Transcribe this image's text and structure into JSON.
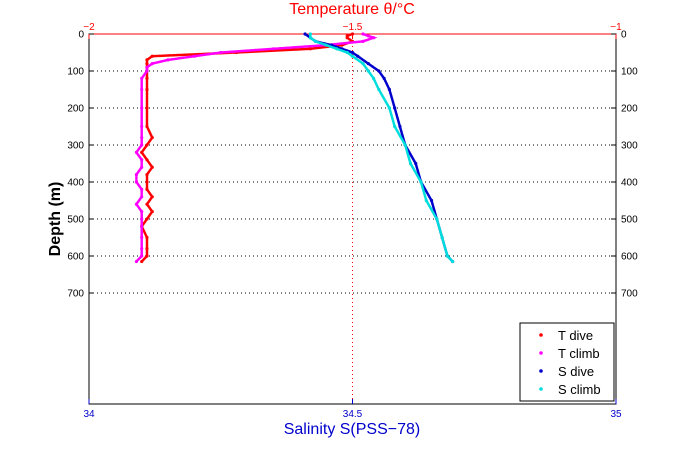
{
  "chart_data": {
    "type": "scatter",
    "title": "",
    "top_axis": {
      "label": "Temperature θ/°C",
      "ticks": [
        "−2",
        "−1.5",
        "−1"
      ],
      "tick_values": [
        -2,
        -1.5,
        -1
      ],
      "range": [
        -2,
        -1
      ],
      "color": "#ff0000"
    },
    "bottom_axis": {
      "label": "Salinity S(PSS−78)",
      "ticks": [
        "34",
        "34.5",
        "35"
      ],
      "tick_values": [
        34,
        34.5,
        35
      ],
      "range": [
        34,
        35
      ],
      "color": "#0000cc"
    },
    "y_axis": {
      "label": "Depth (m)",
      "ticks": [
        "0",
        "100",
        "200",
        "300",
        "400",
        "500",
        "600",
        "700"
      ],
      "tick_values": [
        0,
        100,
        200,
        300,
        400,
        500,
        600,
        700
      ],
      "range": [
        0,
        1000
      ],
      "inverted": true
    },
    "gridlines": {
      "depth": [
        100,
        200,
        300,
        400,
        500,
        600,
        700
      ],
      "salinity": [
        34.5
      ]
    },
    "legend_position": "bottom-right",
    "series": [
      {
        "name": "T dive",
        "axis": "temperature",
        "color": "#ff0000",
        "depth": [
          0,
          5,
          10,
          20,
          30,
          40,
          50,
          60,
          70,
          80,
          90,
          100,
          120,
          150,
          200,
          250,
          280,
          300,
          320,
          340,
          360,
          380,
          400,
          420,
          440,
          460,
          480,
          500,
          520,
          550,
          580,
          600,
          615
        ],
        "temp": [
          -1.5,
          -1.51,
          -1.51,
          -1.5,
          -1.52,
          -1.58,
          -1.72,
          -1.88,
          -1.89,
          -1.89,
          -1.89,
          -1.89,
          -1.89,
          -1.89,
          -1.89,
          -1.89,
          -1.88,
          -1.89,
          -1.9,
          -1.89,
          -1.88,
          -1.89,
          -1.89,
          -1.89,
          -1.88,
          -1.89,
          -1.88,
          -1.89,
          -1.9,
          -1.89,
          -1.89,
          -1.89,
          -1.9
        ]
      },
      {
        "name": "T climb",
        "axis": "temperature",
        "color": "#ff00ff",
        "depth": [
          0,
          5,
          10,
          20,
          30,
          40,
          50,
          60,
          70,
          80,
          90,
          100,
          120,
          150,
          200,
          250,
          280,
          300,
          320,
          340,
          360,
          380,
          400,
          420,
          440,
          460,
          480,
          500,
          520,
          550,
          580,
          600,
          615
        ],
        "temp": [
          -1.48,
          -1.47,
          -1.46,
          -1.48,
          -1.55,
          -1.65,
          -1.75,
          -1.8,
          -1.85,
          -1.88,
          -1.89,
          -1.89,
          -1.9,
          -1.9,
          -1.9,
          -1.9,
          -1.9,
          -1.9,
          -1.91,
          -1.9,
          -1.9,
          -1.91,
          -1.91,
          -1.9,
          -1.9,
          -1.91,
          -1.9,
          -1.9,
          -1.9,
          -1.9,
          -1.9,
          -1.9,
          -1.91
        ]
      },
      {
        "name": "S dive",
        "axis": "salinity",
        "color": "#0000cc",
        "depth": [
          0,
          10,
          20,
          30,
          40,
          50,
          60,
          80,
          100,
          120,
          150,
          200,
          250,
          300,
          350,
          400,
          450,
          500,
          550,
          600,
          615
        ],
        "sal": [
          34.41,
          34.42,
          34.43,
          34.46,
          34.48,
          34.5,
          34.51,
          34.53,
          34.55,
          34.56,
          34.57,
          34.58,
          34.59,
          34.6,
          34.62,
          34.63,
          34.65,
          34.66,
          34.67,
          34.68,
          34.69
        ]
      },
      {
        "name": "S climb",
        "axis": "salinity",
        "color": "#00dddd",
        "depth": [
          0,
          10,
          20,
          30,
          40,
          50,
          60,
          80,
          100,
          120,
          150,
          200,
          250,
          300,
          350,
          400,
          450,
          500,
          550,
          600,
          615
        ],
        "sal": [
          34.42,
          34.42,
          34.43,
          34.45,
          34.47,
          34.49,
          34.5,
          34.52,
          34.53,
          34.54,
          34.55,
          34.57,
          34.58,
          34.6,
          34.61,
          34.63,
          34.64,
          34.66,
          34.67,
          34.68,
          34.69
        ]
      }
    ]
  }
}
